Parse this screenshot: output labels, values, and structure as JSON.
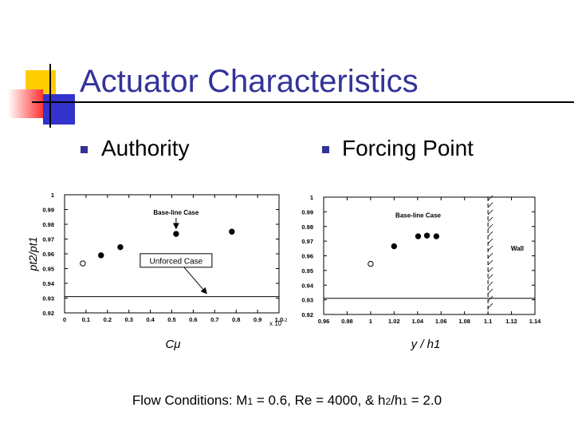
{
  "slide": {
    "title": "Actuator Characteristics",
    "bullets": [
      "Authority",
      "Forcing Point"
    ],
    "footer": {
      "prefix": "Flow Conditions: M",
      "m_sub": "1",
      "m_eq": " = 0.6, Re = 4000, & h",
      "h2_sub": "2",
      "slash": "/h",
      "h1_sub": "1",
      "suffix": " = 2.0"
    },
    "colors": {
      "title": "#333399",
      "bullet": "#333399",
      "deco_yellow": "#FFCC00",
      "deco_red": "#FF3333",
      "deco_blue": "#3333CC"
    }
  },
  "chart_data": [
    {
      "type": "scatter",
      "title": "",
      "ylabel": "pt2/pt1",
      "xlabel": "Cμ",
      "x_multiplier": "x 10",
      "x_exponent": "-2",
      "xlim": [
        0,
        1.0
      ],
      "ylim": [
        0.92,
        1.0
      ],
      "xticks": [
        "0",
        "0.1",
        "0.2",
        "0.3",
        "0.4",
        "0.5",
        "0.6",
        "0.7",
        "0.8",
        "0.9",
        "1.0"
      ],
      "yticks": [
        "0.92",
        "0.93",
        "0.94",
        "0.95",
        "0.96",
        "0.97",
        "0.98",
        "0.99",
        "1"
      ],
      "baseline_y": 0.931,
      "series": [
        {
          "marker": "open",
          "points": [
            [
              0.085,
              0.9535
            ]
          ]
        },
        {
          "marker": "filled",
          "points": [
            [
              0.17,
              0.959
            ],
            [
              0.26,
              0.9645
            ],
            [
              0.52,
              0.9735
            ],
            [
              0.78,
              0.975
            ]
          ]
        }
      ],
      "annotations": [
        {
          "text": "Base-line Case",
          "x": 0.52,
          "y": 0.9865,
          "arrow_to": [
            0.52,
            0.9755
          ]
        },
        {
          "text": "Unforced Case",
          "x": 0.52,
          "y": 0.9555,
          "boxed": true,
          "arrow_to": [
            0.66,
            0.9335
          ]
        }
      ]
    },
    {
      "type": "scatter",
      "title": "",
      "xlabel": "y / h1",
      "xlim": [
        0.96,
        1.14
      ],
      "ylim": [
        0.92,
        1.0
      ],
      "xticks": [
        "0.96",
        "0.98",
        "1",
        "1.02",
        "1.04",
        "1.06",
        "1.08",
        "1.1",
        "1.12",
        "1.14"
      ],
      "yticks": [
        "0.92",
        "0.93",
        "0.94",
        "0.95",
        "0.96",
        "0.97",
        "0.98",
        "0.99",
        "1"
      ],
      "baseline_y": 0.931,
      "wall_x": 1.1,
      "series": [
        {
          "marker": "open",
          "points": [
            [
              1.0,
              0.9545
            ]
          ]
        },
        {
          "marker": "filled",
          "points": [
            [
              1.02,
              0.9665
            ],
            [
              1.0405,
              0.9733
            ],
            [
              1.048,
              0.9738
            ],
            [
              1.056,
              0.9733
            ]
          ]
        }
      ],
      "annotations": [
        {
          "text": "Base-line Case",
          "x": 1.0405,
          "y": 0.986
        },
        {
          "text": "Wall",
          "x": 1.125,
          "y": 0.9635
        }
      ]
    }
  ]
}
